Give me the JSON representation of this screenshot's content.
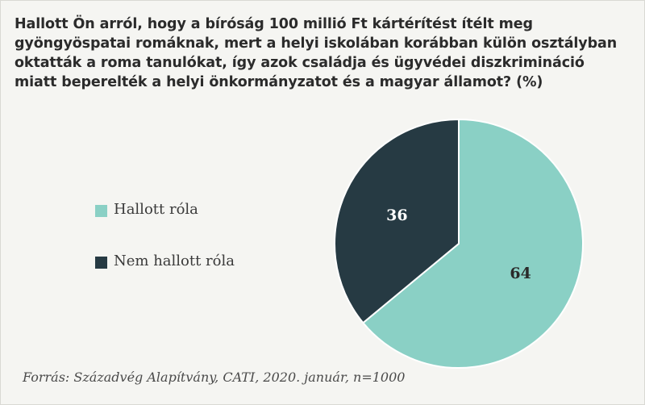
{
  "colors": {
    "hallott": "#8ad0c5",
    "nem_hallott": "#263a43",
    "background": "#f5f5f2"
  },
  "title": "Hallott Ön arról, hogy a bíróság 100 millió Ft kártérítést ítélt meg gyöngyöspatai romáknak, mert a helyi iskolában korábban külön osztályban oktatták a roma tanulókat, így azok családja és ügyvédei diszkrimináció miatt beperelték a helyi önkormányzatot és a magyar államot? (%)",
  "legend": [
    {
      "label": "Hallott róla",
      "color_key": "hallott"
    },
    {
      "label": "Nem hallott róla",
      "color_key": "nem_hallott"
    }
  ],
  "source": "Forrás: Századvég Alapítvány, CATI, 2020. január, n=1000",
  "chart_data": {
    "type": "pie",
    "title": "Hallott Ön arról, hogy a bíróság 100 millió Ft kártérítést ítélt meg gyöngyöspatai romáknak, mert a helyi iskolában korábban külön osztályban oktatták a roma tanulókat, így azok családja és ügyvédei diszkrimináció miatt beperelték a helyi önkormányzatot és a magyar államot? (%)",
    "categories": [
      "Hallott róla",
      "Nem hallott róla"
    ],
    "values": [
      64,
      36
    ],
    "data_labels": [
      "64",
      "36"
    ],
    "start": "12 o'clock, clockwise",
    "legend_position": "left"
  }
}
